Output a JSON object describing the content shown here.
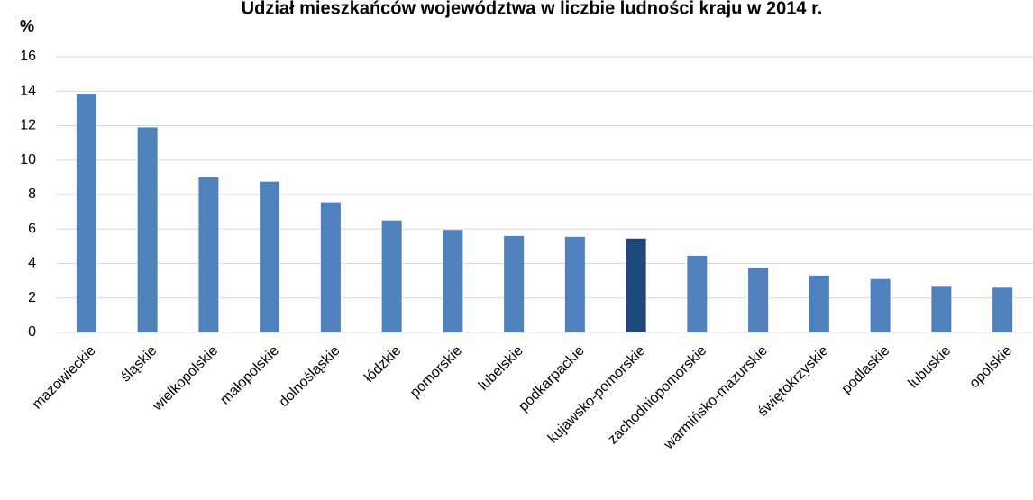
{
  "chart_data": {
    "type": "bar",
    "title": "Udział mieszkańców województwa w liczbie ludności kraju w 2014 r.",
    "y_label": "%",
    "categories": [
      "mazowieckie",
      "śląskie",
      "wielkopolskie",
      "małopolskie",
      "dolnośląskie",
      "łódzkie",
      "pomorskie",
      "lubelskie",
      "podkarpackie",
      "kujawsko-pomorskie",
      "zachodniopomorskie",
      "warmińsko-mazurskie",
      "świętokrzyskie",
      "podlaskie",
      "lubuskie",
      "opolskie"
    ],
    "values": [
      13.85,
      11.9,
      9.0,
      8.75,
      7.55,
      6.5,
      5.95,
      5.6,
      5.55,
      5.45,
      4.45,
      3.75,
      3.3,
      3.1,
      2.65,
      2.6
    ],
    "colors": [
      "#4f81bd",
      "#4f81bd",
      "#4f81bd",
      "#4f81bd",
      "#4f81bd",
      "#4f81bd",
      "#4f81bd",
      "#4f81bd",
      "#4f81bd",
      "#1f497d",
      "#4f81bd",
      "#4f81bd",
      "#4f81bd",
      "#4f81bd",
      "#4f81bd",
      "#4f81bd"
    ],
    "ylim": [
      0,
      16
    ],
    "yticks": [
      0,
      2,
      4,
      6,
      8,
      10,
      12,
      14,
      16
    ],
    "grid": true
  }
}
